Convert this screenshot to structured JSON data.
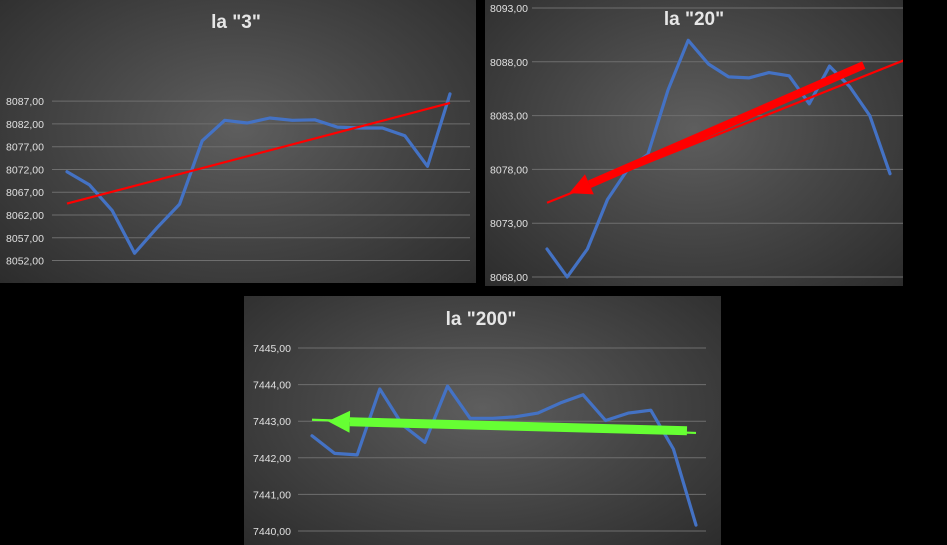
{
  "colors": {
    "line": "#4472c4",
    "trend_red": "#ff0000",
    "trend_green": "#66ff33",
    "grid": "#6e6e6e",
    "text": "#e6e6e6"
  },
  "chart_data": [
    {
      "type": "line",
      "title": "la \"3\"",
      "yticks": [
        "8087,00",
        "8082,00",
        "8077,00",
        "8072,00",
        "8067,00",
        "8062,00",
        "8057,00",
        "8052,00"
      ],
      "ylim": [
        8050.8,
        8094.5
      ],
      "grid": true,
      "series": [
        {
          "values": [
            8071.5,
            8068.6,
            8063.0,
            8053.6,
            8059.2,
            8064.4,
            8078.3,
            8082.8,
            8082.2,
            8083.3,
            8082.8,
            8082.9,
            8081.3,
            8081.1,
            8081.1,
            8079.4,
            8072.7,
            8088.6
          ]
        }
      ],
      "annotations": [
        {
          "type": "trend-line",
          "color": "red",
          "from": [
            0,
            8064.5
          ],
          "to": [
            17,
            8086.6
          ]
        }
      ]
    },
    {
      "type": "line",
      "title": "la \"20\"",
      "yticks": [
        "8093,00",
        "8088,00",
        "8083,00",
        "8078,00",
        "8073,00",
        "8068,00"
      ],
      "ylim": [
        8068.0,
        8093.0
      ],
      "grid": true,
      "series": [
        {
          "values": [
            8070.6,
            8068.0,
            8070.6,
            8075.2,
            8078.0,
            8079.4,
            8085.4,
            8090.0,
            8087.8,
            8086.6,
            8086.5,
            8087.0,
            8086.7,
            8084.1,
            8087.6,
            8085.7,
            8083.0,
            8077.6
          ]
        }
      ],
      "annotations": [
        {
          "type": "trend-line",
          "color": "red",
          "from": [
            0,
            8074.9
          ],
          "to": [
            17.9,
            8088.3
          ]
        },
        {
          "type": "arrow",
          "color": "red",
          "from": [
            15.7,
            8087.7
          ],
          "to": [
            1.1,
            8075.8
          ]
        }
      ]
    },
    {
      "type": "line",
      "title": "la \"200\"",
      "yticks": [
        "7445,00",
        "7444,00",
        "7443,00",
        "7442,00",
        "7441,00",
        "7440,00"
      ],
      "ylim": [
        7440.0,
        7445.0
      ],
      "grid": true,
      "series": [
        {
          "values": [
            7442.6,
            7442.12,
            7442.08,
            7443.88,
            7442.9,
            7442.42,
            7443.96,
            7443.08,
            7443.08,
            7443.12,
            7443.22,
            7443.5,
            7443.72,
            7443.02,
            7443.22,
            7443.3,
            7442.24,
            7440.16
          ]
        }
      ],
      "annotations": [
        {
          "type": "trend-line",
          "color": "green",
          "from": [
            0,
            7443.04
          ],
          "to": [
            17,
            7442.68
          ]
        },
        {
          "type": "arrow",
          "color": "green",
          "from": [
            16.6,
            7442.74
          ],
          "to": [
            0.7,
            7443.0
          ]
        }
      ]
    }
  ]
}
